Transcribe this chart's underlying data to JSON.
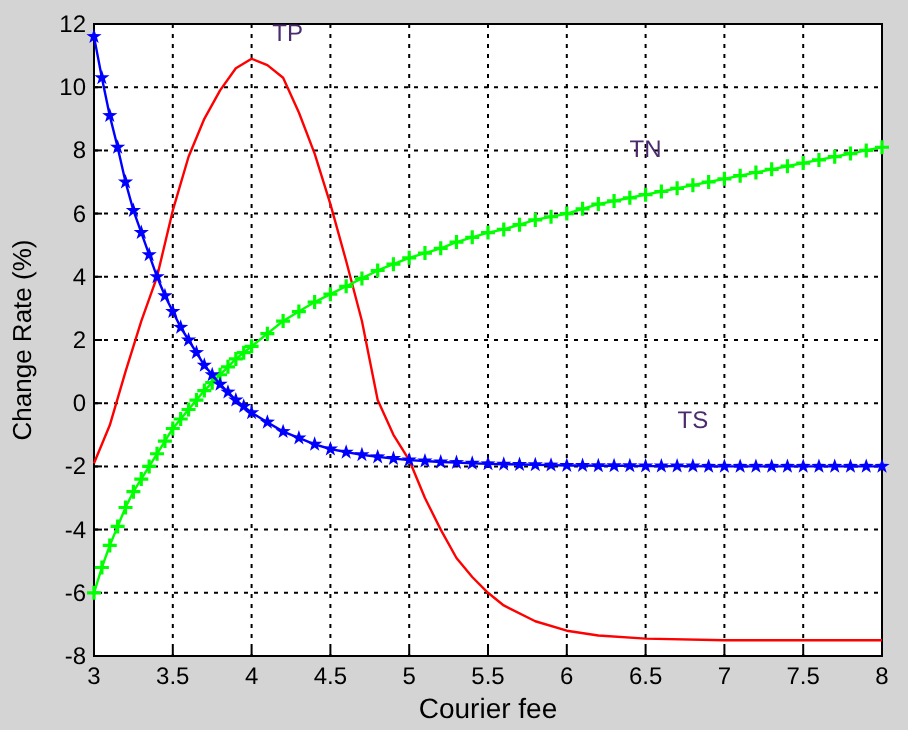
{
  "chart_data": {
    "type": "line",
    "xlabel": "Courier fee",
    "ylabel": "Change Rate  (%)",
    "xlim": [
      3,
      8
    ],
    "ylim": [
      -8,
      12
    ],
    "xticks": [
      3,
      3.5,
      4,
      4.5,
      5,
      5.5,
      6,
      6.5,
      7,
      7.5,
      8
    ],
    "yticks": [
      -8,
      -6,
      -4,
      -2,
      0,
      2,
      4,
      6,
      8,
      10,
      12
    ],
    "grid": true,
    "series": [
      {
        "name": "TP",
        "color": "#ff0000",
        "marker": "none",
        "x": [
          3,
          3.1,
          3.2,
          3.3,
          3.4,
          3.5,
          3.6,
          3.7,
          3.8,
          3.9,
          4,
          4.1,
          4.2,
          4.3,
          4.4,
          4.5,
          4.6,
          4.7,
          4.8,
          4.9,
          5,
          5.1,
          5.2,
          5.3,
          5.4,
          5.5,
          5.6,
          5.8,
          6,
          6.2,
          6.5,
          7,
          7.5,
          8
        ],
        "values": [
          -1.9,
          -0.7,
          1,
          2.6,
          4,
          6.1,
          7.8,
          9,
          9.9,
          10.6,
          10.9,
          10.7,
          10.3,
          9.2,
          7.9,
          6.3,
          4.5,
          2.6,
          0.1,
          -1,
          -1.8,
          -3,
          -4,
          -4.9,
          -5.5,
          -6,
          -6.4,
          -6.9,
          -7.2,
          -7.35,
          -7.45,
          -7.5,
          -7.5,
          -7.5
        ]
      },
      {
        "name": "TN",
        "color": "#00ff00",
        "marker": "cross",
        "x": [
          3,
          3.05,
          3.1,
          3.15,
          3.2,
          3.25,
          3.3,
          3.35,
          3.4,
          3.45,
          3.5,
          3.55,
          3.6,
          3.65,
          3.7,
          3.75,
          3.8,
          3.85,
          3.9,
          3.95,
          4,
          4.1,
          4.2,
          4.3,
          4.4,
          4.5,
          4.6,
          4.7,
          4.8,
          4.9,
          5,
          5.1,
          5.2,
          5.3,
          5.4,
          5.5,
          5.6,
          5.7,
          5.8,
          5.9,
          6,
          6.1,
          6.2,
          6.3,
          6.4,
          6.5,
          6.6,
          6.7,
          6.8,
          6.9,
          7,
          7.1,
          7.2,
          7.3,
          7.4,
          7.5,
          7.6,
          7.7,
          7.8,
          7.9,
          8
        ],
        "values": [
          -6,
          -5.2,
          -4.5,
          -3.9,
          -3.3,
          -2.8,
          -2.4,
          -2,
          -1.6,
          -1.2,
          -0.8,
          -0.5,
          -0.2,
          0.1,
          0.4,
          0.65,
          0.9,
          1.15,
          1.4,
          1.6,
          1.8,
          2.2,
          2.6,
          2.9,
          3.2,
          3.45,
          3.7,
          3.95,
          4.2,
          4.4,
          4.6,
          4.75,
          4.9,
          5.1,
          5.25,
          5.4,
          5.5,
          5.65,
          5.8,
          5.9,
          6,
          6.15,
          6.3,
          6.4,
          6.5,
          6.6,
          6.7,
          6.8,
          6.9,
          7,
          7.1,
          7.2,
          7.3,
          7.4,
          7.5,
          7.6,
          7.7,
          7.8,
          7.9,
          8,
          8.1
        ]
      },
      {
        "name": "TS",
        "color": "#0000ff",
        "marker": "star",
        "x": [
          3,
          3.05,
          3.1,
          3.15,
          3.2,
          3.25,
          3.3,
          3.35,
          3.4,
          3.45,
          3.5,
          3.55,
          3.6,
          3.65,
          3.7,
          3.75,
          3.8,
          3.85,
          3.9,
          3.95,
          4,
          4.1,
          4.2,
          4.3,
          4.4,
          4.5,
          4.6,
          4.7,
          4.8,
          4.9,
          5,
          5.1,
          5.2,
          5.3,
          5.4,
          5.5,
          5.6,
          5.7,
          5.8,
          5.9,
          6,
          6.1,
          6.2,
          6.3,
          6.4,
          6.5,
          6.6,
          6.7,
          6.8,
          6.9,
          7,
          7.1,
          7.2,
          7.3,
          7.4,
          7.5,
          7.6,
          7.7,
          7.8,
          7.9,
          8
        ],
        "values": [
          11.6,
          10.3,
          9.1,
          8.1,
          7,
          6.1,
          5.4,
          4.7,
          4,
          3.4,
          2.9,
          2.4,
          2,
          1.6,
          1.2,
          0.9,
          0.6,
          0.35,
          0.1,
          -0.1,
          -0.3,
          -0.6,
          -0.9,
          -1.1,
          -1.3,
          -1.45,
          -1.55,
          -1.63,
          -1.7,
          -1.75,
          -1.8,
          -1.83,
          -1.86,
          -1.88,
          -1.9,
          -1.92,
          -1.93,
          -1.94,
          -1.95,
          -1.96,
          -1.97,
          -1.97,
          -1.98,
          -1.98,
          -1.98,
          -1.99,
          -1.99,
          -1.99,
          -1.99,
          -2,
          -2,
          -2,
          -2,
          -2,
          -2,
          -2,
          -2,
          -2,
          -2,
          -2,
          -2
        ]
      }
    ]
  }
}
